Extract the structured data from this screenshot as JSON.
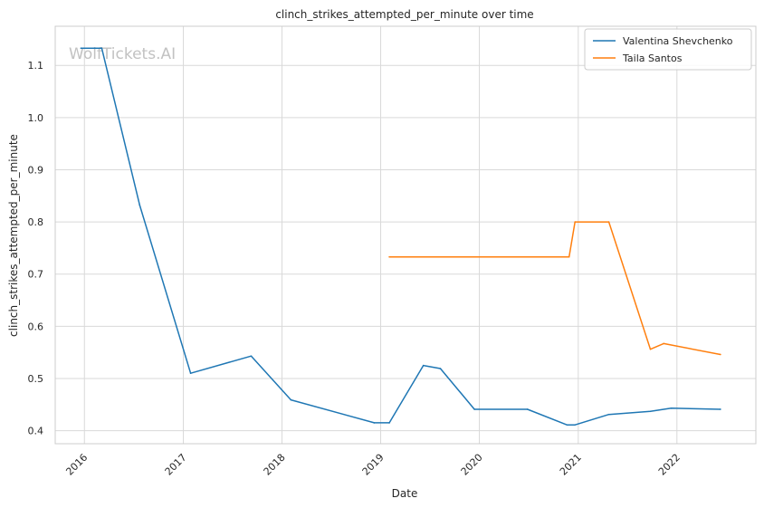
{
  "watermark": "WolfTickets.AI",
  "chart_data": {
    "type": "line",
    "title": "clinch_strikes_attempted_per_minute over time",
    "xlabel": "Date",
    "ylabel": "clinch_strikes_attempted_per_minute",
    "x_ticks": [
      "2016",
      "2017",
      "2018",
      "2019",
      "2020",
      "2021",
      "2022"
    ],
    "y_ticks": [
      "0.4",
      "0.5",
      "0.6",
      "0.7",
      "0.8",
      "0.9",
      "1.0",
      "1.1"
    ],
    "xlim": [
      "2015-09-15",
      "2022-10-20"
    ],
    "ylim": [
      0.375,
      1.175
    ],
    "grid": true,
    "legend_position": "top-right",
    "series": [
      {
        "name": "Valentina Shevchenko",
        "color": "#1f77b4",
        "points": [
          {
            "x": "2015-12-19",
            "y": 1.133
          },
          {
            "x": "2016-03-05",
            "y": 1.133
          },
          {
            "x": "2016-07-23",
            "y": 0.833
          },
          {
            "x": "2017-01-28",
            "y": 0.51
          },
          {
            "x": "2017-09-09",
            "y": 0.543
          },
          {
            "x": "2018-02-03",
            "y": 0.459
          },
          {
            "x": "2018-12-08",
            "y": 0.415
          },
          {
            "x": "2019-02-02",
            "y": 0.415
          },
          {
            "x": "2019-06-08",
            "y": 0.525
          },
          {
            "x": "2019-08-10",
            "y": 0.519
          },
          {
            "x": "2019-12-14",
            "y": 0.441
          },
          {
            "x": "2020-06-27",
            "y": 0.441
          },
          {
            "x": "2020-11-21",
            "y": 0.411
          },
          {
            "x": "2020-12-19",
            "y": 0.411
          },
          {
            "x": "2021-04-24",
            "y": 0.431
          },
          {
            "x": "2021-09-25",
            "y": 0.437
          },
          {
            "x": "2021-12-11",
            "y": 0.443
          },
          {
            "x": "2022-06-11",
            "y": 0.441
          }
        ]
      },
      {
        "name": "Taila Santos",
        "color": "#ff7f0e",
        "points": [
          {
            "x": "2019-02-02",
            "y": 0.733
          },
          {
            "x": "2020-11-28",
            "y": 0.733
          },
          {
            "x": "2020-12-20",
            "y": 0.8
          },
          {
            "x": "2021-04-24",
            "y": 0.8
          },
          {
            "x": "2021-09-25",
            "y": 0.556
          },
          {
            "x": "2021-11-13",
            "y": 0.567
          },
          {
            "x": "2022-06-11",
            "y": 0.546
          }
        ]
      }
    ]
  }
}
